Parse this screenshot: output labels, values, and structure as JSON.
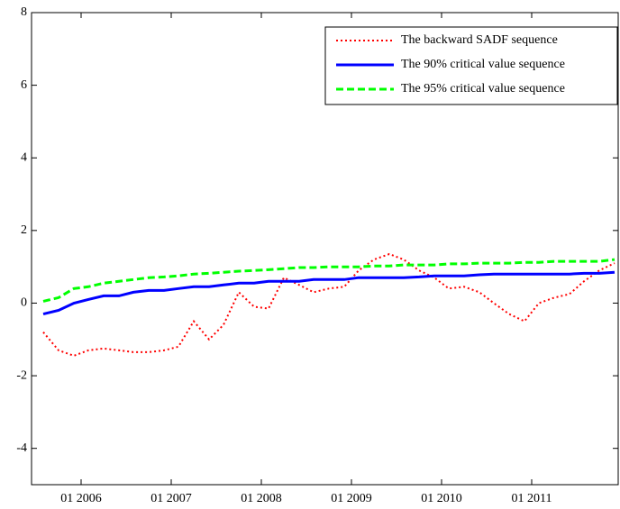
{
  "chart_data": {
    "type": "line",
    "x": [
      2005.58,
      2005.75,
      2005.92,
      2006.08,
      2006.25,
      2006.42,
      2006.58,
      2006.75,
      2006.92,
      2007.08,
      2007.25,
      2007.42,
      2007.58,
      2007.75,
      2007.92,
      2008.08,
      2008.25,
      2008.42,
      2008.58,
      2008.75,
      2008.92,
      2009.08,
      2009.25,
      2009.42,
      2009.58,
      2009.75,
      2009.92,
      2010.08,
      2010.25,
      2010.42,
      2010.58,
      2010.75,
      2010.92,
      2011.08,
      2011.25,
      2011.42,
      2011.58,
      2011.75,
      2011.92
    ],
    "series": [
      {
        "name": "The backward SADF sequence",
        "color": "#ff0000",
        "dash": "dotted",
        "values": [
          -0.8,
          -1.3,
          -1.45,
          -1.3,
          -1.25,
          -1.3,
          -1.35,
          -1.35,
          -1.3,
          -1.2,
          -0.5,
          -1.0,
          -0.6,
          0.3,
          -0.1,
          -0.15,
          0.7,
          0.5,
          0.3,
          0.4,
          0.45,
          0.9,
          1.2,
          1.35,
          1.2,
          0.9,
          0.7,
          0.4,
          0.45,
          0.3,
          0.0,
          -0.3,
          -0.5,
          0.0,
          0.15,
          0.25,
          0.6,
          0.9,
          1.1
        ]
      },
      {
        "name": "The 90% critical value sequence",
        "color": "#0000ff",
        "dash": "solid",
        "values": [
          -0.3,
          -0.2,
          0.0,
          0.1,
          0.2,
          0.2,
          0.3,
          0.35,
          0.35,
          0.4,
          0.45,
          0.45,
          0.5,
          0.55,
          0.55,
          0.6,
          0.6,
          0.6,
          0.65,
          0.65,
          0.65,
          0.7,
          0.7,
          0.7,
          0.7,
          0.72,
          0.75,
          0.75,
          0.75,
          0.78,
          0.8,
          0.8,
          0.8,
          0.8,
          0.8,
          0.8,
          0.82,
          0.82,
          0.85
        ]
      },
      {
        "name": "The 95% critical value sequence",
        "color": "#00ff00",
        "dash": "dashed",
        "values": [
          0.05,
          0.15,
          0.4,
          0.45,
          0.55,
          0.6,
          0.65,
          0.7,
          0.72,
          0.75,
          0.8,
          0.82,
          0.85,
          0.88,
          0.9,
          0.92,
          0.95,
          0.98,
          0.98,
          1.0,
          1.0,
          1.0,
          1.02,
          1.02,
          1.05,
          1.05,
          1.05,
          1.08,
          1.08,
          1.1,
          1.1,
          1.1,
          1.12,
          1.12,
          1.15,
          1.15,
          1.15,
          1.15,
          1.2
        ]
      }
    ],
    "xlim": [
      2005.45,
      2011.96
    ],
    "xticks": [
      {
        "value": 2006,
        "label": "01 2006"
      },
      {
        "value": 2007,
        "label": "01 2007"
      },
      {
        "value": 2008,
        "label": "01 2008"
      },
      {
        "value": 2009,
        "label": "01 2009"
      },
      {
        "value": 2010,
        "label": "01 2010"
      },
      {
        "value": 2011,
        "label": "01 2011"
      }
    ],
    "ylim": [
      -5,
      8
    ],
    "yticks": [
      -4,
      -2,
      0,
      2,
      4,
      6,
      8
    ],
    "legend": "top-right"
  }
}
